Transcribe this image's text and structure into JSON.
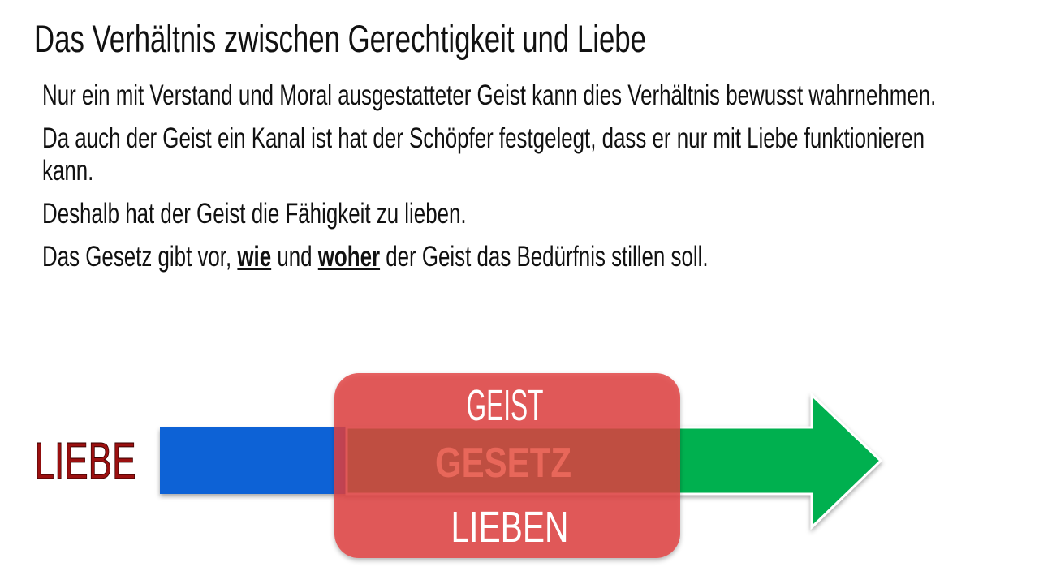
{
  "header": {
    "title": "Das Verhältnis zwischen Gerechtigkeit und Liebe"
  },
  "paragraphs": [
    {
      "runs": [
        {
          "text": "Nur ein mit Verstand und Moral ausgestatteter Geist kann dies Verhältnis bewusst wahrnehmen."
        }
      ]
    },
    {
      "runs": [
        {
          "text": "Da auch der Geist ein Kanal ist hat der Schöpfer festgelegt, dass er nur mit Liebe funktionieren kann."
        }
      ]
    },
    {
      "runs": [
        {
          "text": "Deshalb hat der Geist die Fähigkeit zu lieben."
        }
      ]
    },
    {
      "runs": [
        {
          "text": "Das Gesetz gibt vor, "
        },
        {
          "text": "wie",
          "underline": true
        },
        {
          "text": " und "
        },
        {
          "text": "woher",
          "underline": true
        },
        {
          "text": " der Geist das Bedürfnis stillen soll."
        }
      ]
    }
  ],
  "diagram": {
    "source": "LIEBE",
    "top": "GEIST",
    "middle": "GESETZ",
    "bottom": "LIEBEN"
  }
}
